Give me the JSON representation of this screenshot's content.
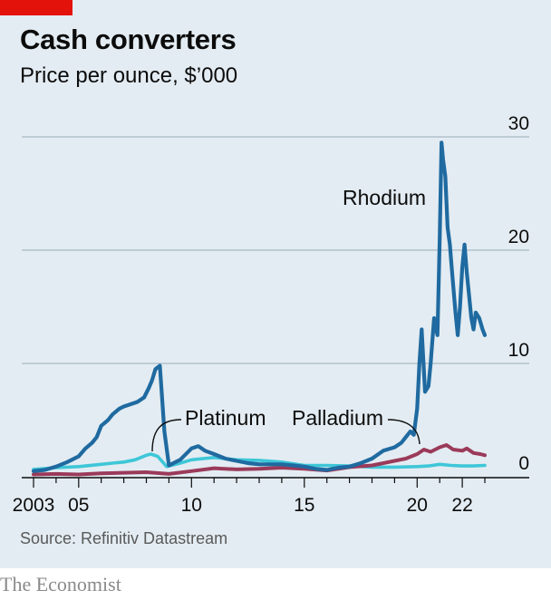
{
  "header": {
    "title": "Cash converters",
    "subtitle": "Price per ounce, $’000"
  },
  "footer": {
    "source": "Source: Refinitiv Datastream",
    "brand": "The Economist"
  },
  "colors": {
    "background": "#e3ecf2",
    "accent": "#e3120b",
    "rhodium": "#1f6aa0",
    "palladium": "#9b3a5a",
    "platinum": "#3ec7d8",
    "grid": "#a9b8c4"
  },
  "chart_data": {
    "type": "line",
    "title": "Cash converters",
    "subtitle": "Price per ounce, $’000",
    "xlim": [
      2002.9,
      2023.1
    ],
    "ylim": [
      0,
      30
    ],
    "yticks": [
      0,
      10,
      20,
      30
    ],
    "ytick_labels": [
      "0",
      "10",
      "20",
      "30"
    ],
    "xticks": [
      2003,
      2005,
      2010,
      2015,
      2020,
      2022
    ],
    "xtick_labels": [
      "2003",
      "05",
      "10",
      "15",
      "20",
      "22"
    ],
    "grid": true,
    "legend": "direct labels",
    "series": [
      {
        "name": "Rhodium",
        "color": "#1f6aa0",
        "x": [
          2003.0,
          2003.5,
          2004.0,
          2004.5,
          2005.0,
          2005.3,
          2005.6,
          2005.8,
          2006.0,
          2006.3,
          2006.5,
          2006.8,
          2007.0,
          2007.3,
          2007.6,
          2007.9,
          2008.1,
          2008.25,
          2008.4,
          2008.6,
          2008.8,
          2009.0,
          2009.5,
          2010.0,
          2010.3,
          2010.6,
          2011.0,
          2011.5,
          2012.0,
          2012.5,
          2013.0,
          2014.0,
          2014.5,
          2015.0,
          2015.5,
          2016.0,
          2016.5,
          2017.0,
          2017.5,
          2018.0,
          2018.5,
          2019.0,
          2019.3,
          2019.5,
          2019.7,
          2019.85,
          2020.0,
          2020.1,
          2020.2,
          2020.35,
          2020.5,
          2020.6,
          2020.75,
          2020.9,
          2021.0,
          2021.08,
          2021.15,
          2021.25,
          2021.35,
          2021.45,
          2021.55,
          2021.7,
          2021.8,
          2021.9,
          2022.0,
          2022.1,
          2022.2,
          2022.3,
          2022.4,
          2022.5,
          2022.6,
          2022.75,
          2022.9,
          2023.0
        ],
        "y": [
          0.5,
          0.6,
          0.9,
          1.3,
          1.8,
          2.5,
          3.0,
          3.5,
          4.5,
          5.0,
          5.5,
          6.0,
          6.2,
          6.4,
          6.6,
          7.0,
          7.8,
          8.5,
          9.5,
          9.8,
          4.0,
          1.0,
          1.5,
          2.5,
          2.7,
          2.3,
          2.0,
          1.6,
          1.4,
          1.2,
          1.1,
          1.1,
          1.0,
          0.9,
          0.7,
          0.6,
          0.8,
          0.9,
          1.2,
          1.6,
          2.3,
          2.6,
          3.0,
          3.5,
          4.0,
          3.7,
          6.0,
          10.0,
          13.0,
          7.5,
          8.0,
          10.0,
          14.0,
          12.5,
          21.0,
          29.5,
          28.0,
          26.5,
          22.0,
          20.5,
          18.0,
          14.5,
          12.5,
          15.0,
          18.5,
          20.5,
          18.0,
          16.0,
          14.0,
          13.0,
          14.5,
          14.0,
          13.0,
          12.5
        ]
      },
      {
        "name": "Palladium",
        "color": "#9b3a5a",
        "x": [
          2003.0,
          2004.0,
          2005.0,
          2006.0,
          2007.0,
          2008.0,
          2009.0,
          2010.0,
          2011.0,
          2012.0,
          2013.0,
          2014.0,
          2015.0,
          2016.0,
          2017.0,
          2018.0,
          2019.0,
          2019.5,
          2020.0,
          2020.3,
          2020.6,
          2021.0,
          2021.3,
          2021.6,
          2022.0,
          2022.2,
          2022.5,
          2022.8,
          2023.0
        ],
        "y": [
          0.2,
          0.25,
          0.2,
          0.3,
          0.35,
          0.4,
          0.25,
          0.5,
          0.75,
          0.65,
          0.7,
          0.8,
          0.7,
          0.55,
          0.85,
          1.0,
          1.4,
          1.6,
          2.0,
          2.4,
          2.2,
          2.6,
          2.8,
          2.4,
          2.3,
          2.5,
          2.1,
          2.0,
          1.9
        ]
      },
      {
        "name": "Platinum",
        "color": "#3ec7d8",
        "x": [
          2003.0,
          2004.0,
          2005.0,
          2006.0,
          2006.5,
          2007.0,
          2007.5,
          2008.0,
          2008.2,
          2008.5,
          2008.9,
          2009.5,
          2010.0,
          2010.5,
          2011.0,
          2011.5,
          2012.0,
          2013.0,
          2014.0,
          2015.0,
          2016.0,
          2017.0,
          2018.0,
          2019.0,
          2020.0,
          2020.5,
          2021.0,
          2021.5,
          2022.0,
          2022.5,
          2023.0
        ],
        "y": [
          0.65,
          0.8,
          0.9,
          1.1,
          1.2,
          1.3,
          1.5,
          1.9,
          2.0,
          1.8,
          0.9,
          1.2,
          1.5,
          1.6,
          1.7,
          1.6,
          1.5,
          1.45,
          1.3,
          1.0,
          1.0,
          0.95,
          0.85,
          0.85,
          0.9,
          0.95,
          1.1,
          1.0,
          0.95,
          0.95,
          1.0
        ]
      }
    ],
    "annotations": [
      {
        "text": "Rhodium",
        "series": "Rhodium"
      },
      {
        "text": "Platinum",
        "series": "Platinum"
      },
      {
        "text": "Palladium",
        "series": "Palladium"
      }
    ]
  }
}
